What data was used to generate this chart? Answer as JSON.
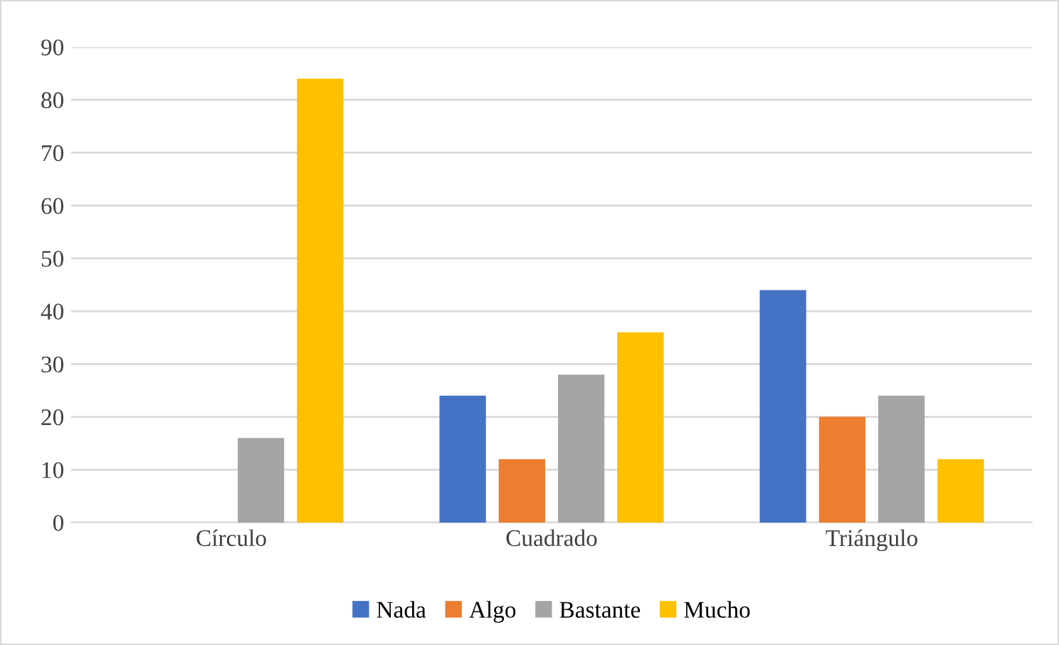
{
  "chart_data": {
    "type": "bar",
    "categories": [
      "Círculo",
      "Cuadrado",
      "Triángulo"
    ],
    "series": [
      {
        "name": "Nada",
        "color": "#4472c4",
        "values": [
          0,
          24,
          44
        ]
      },
      {
        "name": "Algo",
        "color": "#ed7d31",
        "values": [
          0,
          12,
          20
        ]
      },
      {
        "name": "Bastante",
        "color": "#a5a5a5",
        "values": [
          16,
          28,
          24
        ]
      },
      {
        "name": "Mucho",
        "color": "#ffc000",
        "values": [
          84,
          36,
          12
        ]
      }
    ],
    "ylim": [
      0,
      90
    ],
    "yticks": [
      0,
      10,
      20,
      30,
      40,
      50,
      60,
      70,
      80,
      90
    ],
    "grid": "y",
    "legend": "bottom"
  }
}
